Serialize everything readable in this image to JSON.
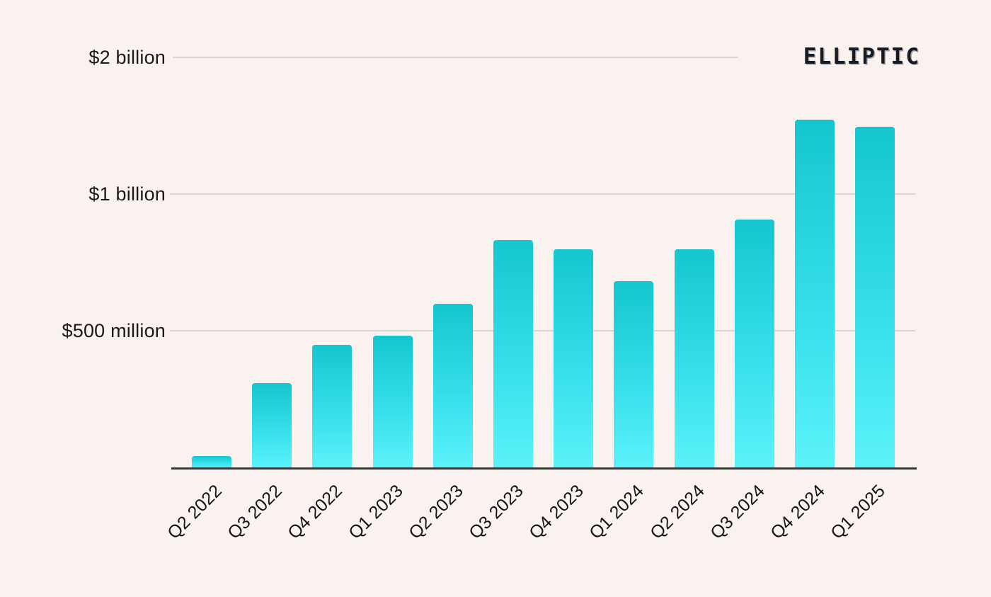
{
  "page": {
    "background": "#f9f2ee"
  },
  "logo": {
    "text": "ELLIPTIC",
    "color": "#141b24"
  },
  "chart_data": {
    "type": "bar",
    "title": "",
    "xlabel": "",
    "ylabel": "",
    "unit": "USD millions",
    "categories": [
      "Q2 2022",
      "Q3 2022",
      "Q4 2022",
      "Q1 2023",
      "Q2 2023",
      "Q3 2023",
      "Q4 2023",
      "Q1 2024",
      "Q2 2024",
      "Q3 2024",
      "Q4 2024",
      "Q1 2025"
    ],
    "values_usd_millions": [
      45,
      310,
      450,
      485,
      600,
      835,
      800,
      685,
      800,
      910,
      1275,
      1250
    ],
    "y_axis_labels": [
      "$2 billion",
      "$1 billion",
      "$500 million"
    ],
    "y_gridline_values_musd": [
      2000,
      1000,
      500
    ],
    "ylim_musd": [
      0,
      1450
    ],
    "grid": "horizontal-only",
    "legend": "none",
    "bar_gradient_top": "#15c6cf",
    "bar_gradient_bottom": "#5cf2fa",
    "gridline_color": "#d9d4d0",
    "axis_color": "#3a3a3a",
    "label_color": "#1a1a1a"
  }
}
